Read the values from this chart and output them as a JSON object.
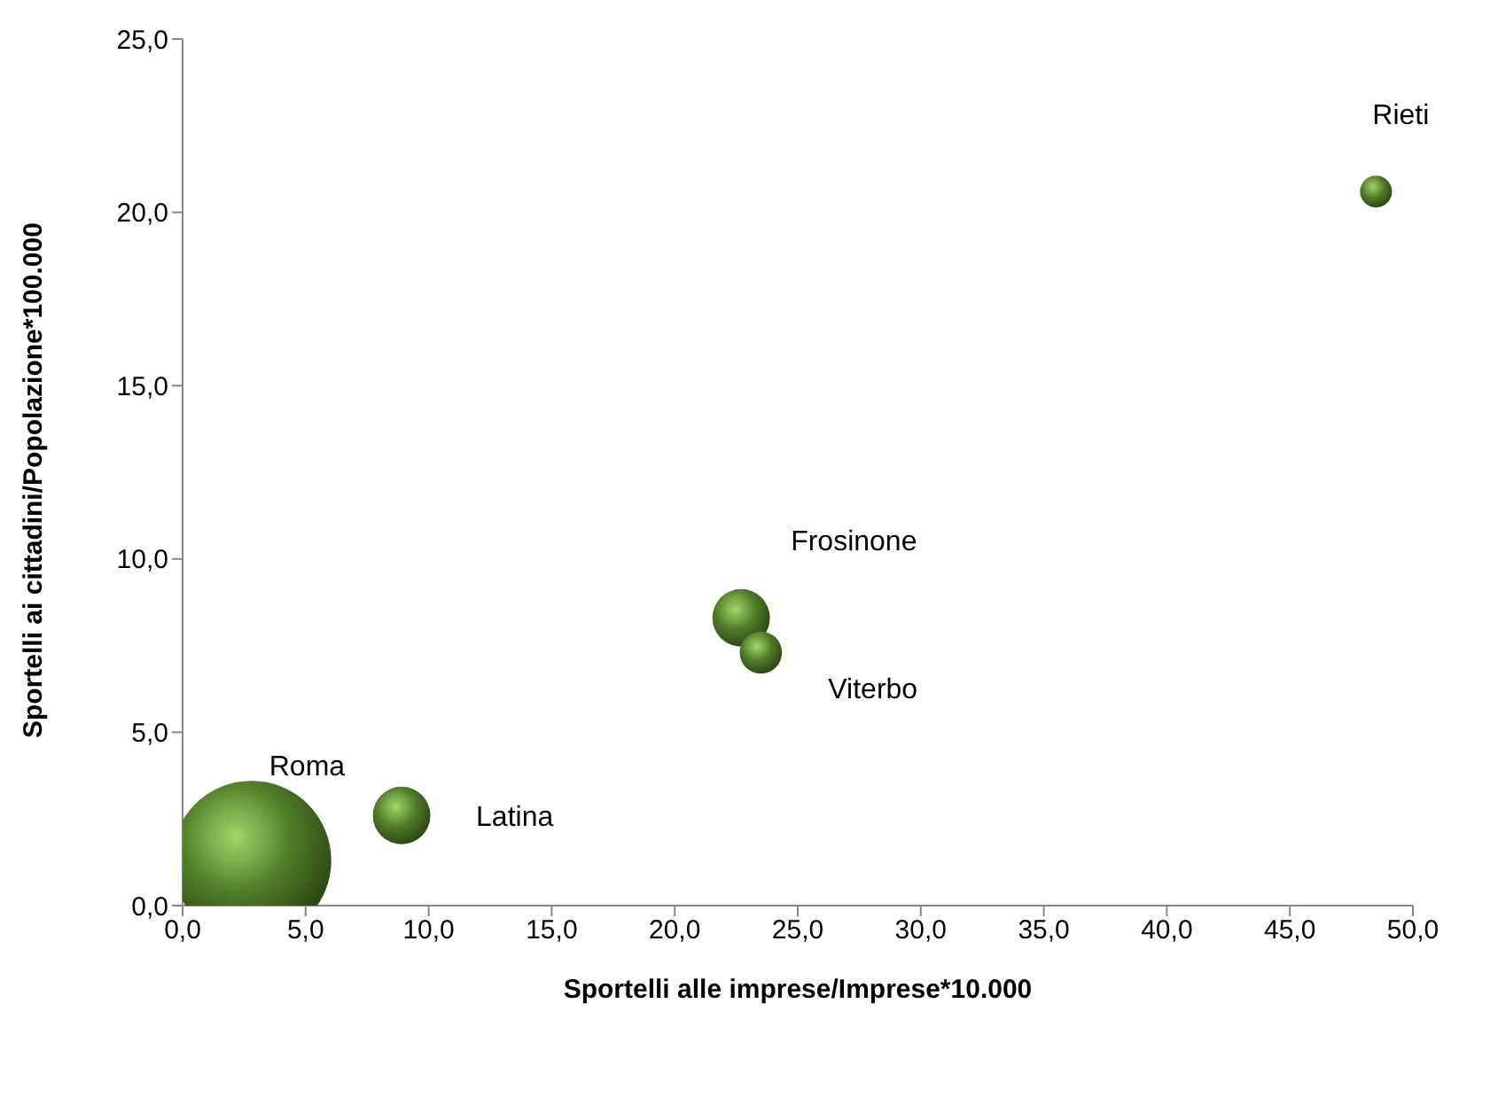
{
  "chart_data": {
    "type": "bubble",
    "xlabel": "Sportelli alle imprese/Imprese*10.000",
    "ylabel": "Sportelli ai cittadini/Popolazione*100.000",
    "x": [
      2.8,
      8.9,
      22.7,
      23.5,
      48.5
    ],
    "values": [
      1.3,
      2.6,
      8.3,
      7.3,
      20.6
    ],
    "sizes": [
      1,
      0.13,
      0.13,
      0.07,
      0.04
    ],
    "color": "#4f7a28",
    "xlim": [
      0,
      50
    ],
    "ylim": [
      0,
      25
    ],
    "xticks": [
      {
        "value": 0,
        "label": "0,0"
      },
      {
        "value": 5,
        "label": "5,0"
      },
      {
        "value": 10,
        "label": "10,0"
      },
      {
        "value": 15,
        "label": "15,0"
      },
      {
        "value": 20,
        "label": "20,0"
      },
      {
        "value": 25,
        "label": "25,0"
      },
      {
        "value": 30,
        "label": "30,0"
      },
      {
        "value": 35,
        "label": "35,0"
      },
      {
        "value": 40,
        "label": "40,0"
      },
      {
        "value": 45,
        "label": "45,0"
      },
      {
        "value": 50,
        "label": "50,0"
      }
    ],
    "yticks": [
      {
        "value": 0,
        "label": "0,0"
      },
      {
        "value": 5,
        "label": "5,0"
      },
      {
        "value": 10,
        "label": "10,0"
      },
      {
        "value": 15,
        "label": "15,0"
      },
      {
        "value": 20,
        "label": "20,0"
      },
      {
        "value": 25,
        "label": "25,0"
      }
    ],
    "annotations": [
      {
        "text": "Roma",
        "x": 2.8,
        "y": 1.3
      },
      {
        "text": "Latina",
        "x": 8.9,
        "y": 2.6
      },
      {
        "text": "Frosinone",
        "x": 22.7,
        "y": 8.3
      },
      {
        "text": "Viterbo",
        "x": 23.5,
        "y": 7.3
      },
      {
        "text": "Rieti",
        "x": 48.5,
        "y": 20.6
      }
    ],
    "grid": false,
    "legend": false
  }
}
